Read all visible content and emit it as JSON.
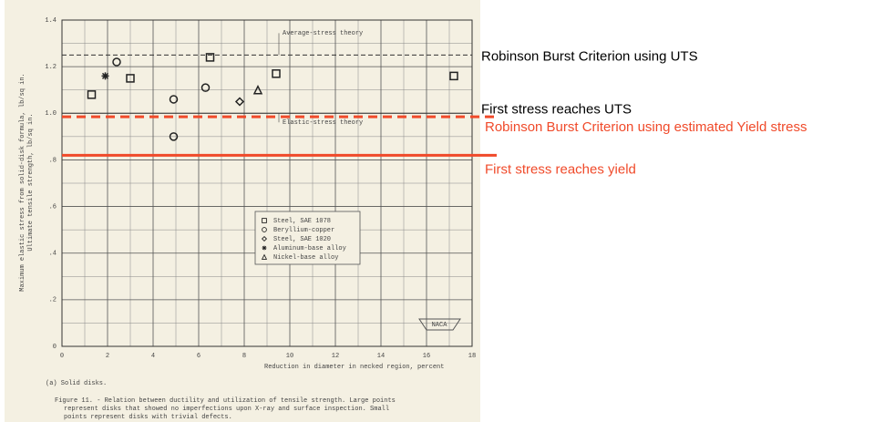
{
  "chart_data": {
    "type": "scatter",
    "xlabel": "Reduction in diameter in necked region, percent",
    "ylabel": [
      "Maximum elastic stress from solid-disk formula, lb/sq in.",
      "Ultimate tensile strength, lb/sq in."
    ],
    "subtitle": "(a) Solid disks.",
    "caption": [
      "Figure 11. - Relation between ductility and utilization of tensile strength.  Large points",
      "represent disks that showed no imperfections upon X-ray and surface inspection.  Small",
      "points represent disks with trivial defects."
    ],
    "logo": "NACA",
    "xlim": [
      0,
      18
    ],
    "xticks": [
      0,
      2,
      4,
      6,
      8,
      10,
      12,
      14,
      16,
      18
    ],
    "ylim": [
      0,
      1.4
    ],
    "yticks": [
      0,
      {
        "value": 0.2,
        "label": ".2"
      },
      {
        "value": 0.4,
        "label": ".4"
      },
      {
        "value": 0.6,
        "label": ".6"
      },
      {
        "value": 0.8,
        "label": ".8"
      },
      {
        "value": 1.0,
        "label": "1.0"
      },
      1.2,
      1.4
    ],
    "grid": true,
    "series": [
      {
        "name": "Steel, SAE 1078",
        "marker": "square",
        "color": "#222222",
        "x": [
          1.3,
          3.0,
          6.5,
          9.4,
          17.2
        ],
        "values": [
          1.08,
          1.15,
          1.24,
          1.17,
          1.16
        ]
      },
      {
        "name": "Beryllium-copper",
        "marker": "circle",
        "color": "#222222",
        "x": [
          2.4,
          4.9,
          4.9,
          6.3
        ],
        "values": [
          1.22,
          1.06,
          0.9,
          1.11
        ]
      },
      {
        "name": "Steel, SAE 1020",
        "marker": "diamond",
        "color": "#222222",
        "x": [
          7.8
        ],
        "values": [
          1.05
        ]
      },
      {
        "name": "Aluminum-base alloy",
        "marker": "star",
        "color": "#222222",
        "x": [
          1.9
        ],
        "values": [
          1.16
        ]
      },
      {
        "name": "Nickel-base alloy",
        "marker": "triangle",
        "color": "#222222",
        "x": [
          8.6
        ],
        "values": [
          1.1
        ]
      }
    ],
    "reference_lines": [
      {
        "label": "Average-stress theory",
        "note": "Robinson Burst Criterion using UTS",
        "value": 1.25,
        "color": "#333333",
        "style": "dashed"
      },
      {
        "label": "Elastic-stress theory",
        "note": "First stress reaches UTS",
        "value": 1.0,
        "color": "#333333",
        "style": "solid"
      },
      {
        "note": "Robinson Burst Criterion using estimated Yield stress",
        "value": 0.985,
        "color": "#f04a2a",
        "style": "dashed"
      },
      {
        "note": "First stress reaches yield",
        "value": 0.82,
        "color": "#f04a2a",
        "style": "solid"
      }
    ]
  }
}
